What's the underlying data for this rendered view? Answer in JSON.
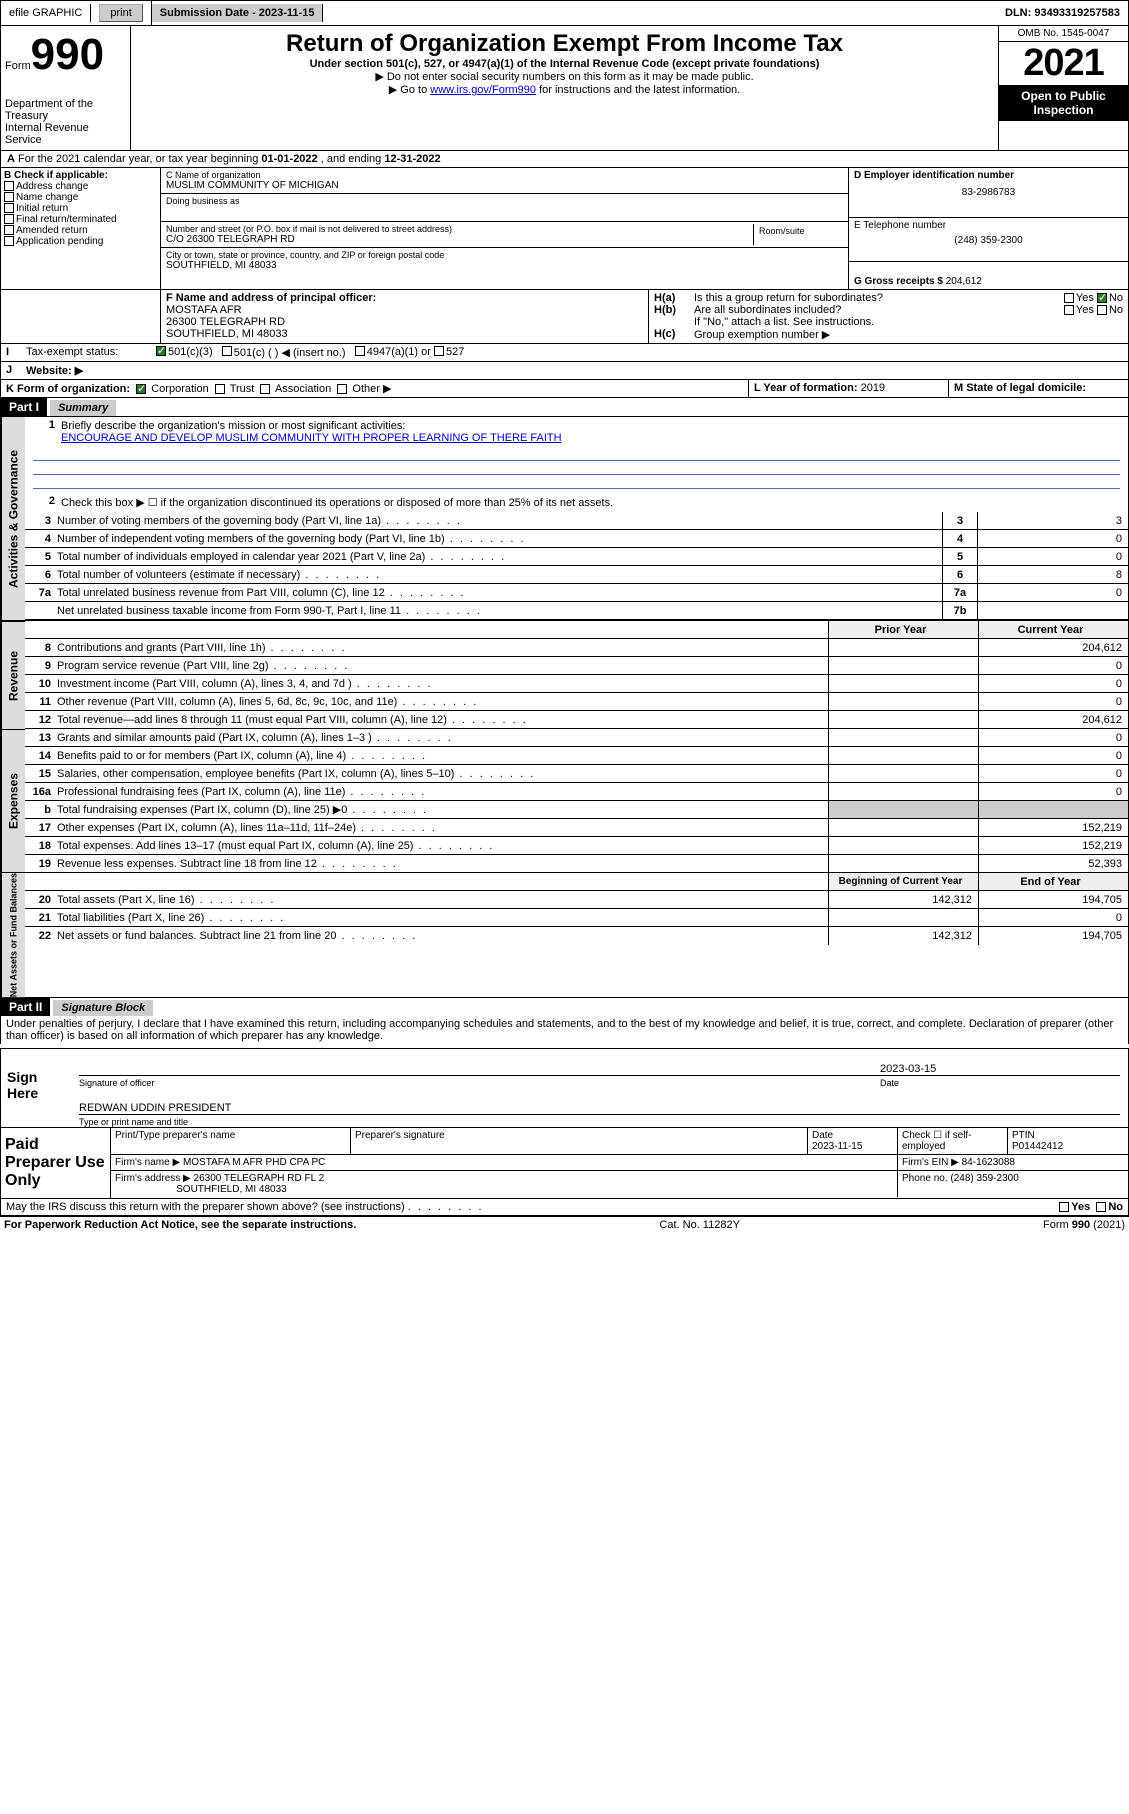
{
  "topbar": {
    "efile": "efile GRAPHIC",
    "print": "print",
    "sub_date_label": "Submission Date - 2023-11-15",
    "dln": "DLN: 93493319257583"
  },
  "header": {
    "form_word": "Form",
    "form_num": "990",
    "title": "Return of Organization Exempt From Income Tax",
    "sub1": "Under section 501(c), 527, or 4947(a)(1) of the Internal Revenue Code (except private foundations)",
    "sub2": "▶ Do not enter social security numbers on this form as it may be made public.",
    "sub3_pre": "▶ Go to ",
    "sub3_link": "www.irs.gov/Form990",
    "sub3_post": " for instructions and the latest information.",
    "dept": "Department of the Treasury",
    "irs": "Internal Revenue Service",
    "omb": "OMB No. 1545-0047",
    "year": "2021",
    "open": "Open to Public Inspection"
  },
  "row_a": {
    "text_pre": "For the 2021 calendar year, or tax year beginning ",
    "begin": "01-01-2022",
    "mid": " , and ending ",
    "end": "12-31-2022"
  },
  "col_b": {
    "label": "B Check if applicable:",
    "items": [
      "Address change",
      "Name change",
      "Initial return",
      "Final return/terminated",
      "Amended return",
      "Application pending"
    ]
  },
  "col_c": {
    "c_label": "C Name of organization",
    "org_name": "MUSLIM COMMUNITY OF MICHIGAN",
    "dba_label": "Doing business as",
    "addr_label": "Number and street (or P.O. box if mail is not delivered to street address)",
    "room_label": "Room/suite",
    "addr": "C/O 26300 TELEGRAPH RD",
    "city_label": "City or town, state or province, country, and ZIP or foreign postal code",
    "city": "SOUTHFIELD, MI  48033"
  },
  "col_d": {
    "label": "D Employer identification number",
    "ein": "83-2986783"
  },
  "col_e": {
    "label": "E Telephone number",
    "phone": "(248) 359-2300"
  },
  "col_g": {
    "label": "G Gross receipts $",
    "amount": "204,612"
  },
  "row_f": {
    "label": "F Name and address of principal officer:",
    "name": "MOSTAFA AFR",
    "addr1": "26300 TELEGRAPH RD",
    "addr2": "SOUTHFIELD, MI  48033"
  },
  "row_h": {
    "ha": "Is this a group return for subordinates?",
    "hb": "Are all subordinates included?",
    "hb_note": "If \"No,\" attach a list. See instructions.",
    "hc": "Group exemption number ▶",
    "yes": "Yes",
    "no": "No"
  },
  "row_i": {
    "label": "Tax-exempt status:",
    "opts": [
      "501(c)(3)",
      "501(c) (  ) ◀ (insert no.)",
      "4947(a)(1) or",
      "527"
    ]
  },
  "row_j": {
    "label": "Website: ▶"
  },
  "row_k": {
    "label": "K Form of organization:",
    "opts": [
      "Corporation",
      "Trust",
      "Association",
      "Other ▶"
    ]
  },
  "row_l": {
    "label": "L Year of formation:",
    "val": "2019"
  },
  "row_m": {
    "label": "M State of legal domicile:"
  },
  "part1": {
    "header": "Part I",
    "title": "Summary",
    "l1_label": "Briefly describe the organization's mission or most significant activities:",
    "l1_mission": "ENCOURAGE AND DEVELOP MUSLIM COMMUNITY WITH PROPER LEARNING OF THERE FAITH",
    "l2": "Check this box ▶ ☐ if the organization discontinued its operations or disposed of more than 25% of its net assets.",
    "lines_gov": [
      {
        "n": "3",
        "d": "Number of voting members of the governing body (Part VI, line 1a)",
        "lab": "3",
        "v": "3"
      },
      {
        "n": "4",
        "d": "Number of independent voting members of the governing body (Part VI, line 1b)",
        "lab": "4",
        "v": "0"
      },
      {
        "n": "5",
        "d": "Total number of individuals employed in calendar year 2021 (Part V, line 2a)",
        "lab": "5",
        "v": "0"
      },
      {
        "n": "6",
        "d": "Total number of volunteers (estimate if necessary)",
        "lab": "6",
        "v": "8"
      },
      {
        "n": "7a",
        "d": "Total unrelated business revenue from Part VIII, column (C), line 12",
        "lab": "7a",
        "v": "0"
      },
      {
        "n": "",
        "d": "Net unrelated business taxable income from Form 990-T, Part I, line 11",
        "lab": "7b",
        "v": ""
      }
    ],
    "prior_head": "Prior Year",
    "curr_head": "Current Year",
    "rev_lines": [
      {
        "n": "8",
        "d": "Contributions and grants (Part VIII, line 1h)",
        "p": "",
        "c": "204,612"
      },
      {
        "n": "9",
        "d": "Program service revenue (Part VIII, line 2g)",
        "p": "",
        "c": "0"
      },
      {
        "n": "10",
        "d": "Investment income (Part VIII, column (A), lines 3, 4, and 7d )",
        "p": "",
        "c": "0"
      },
      {
        "n": "11",
        "d": "Other revenue (Part VIII, column (A), lines 5, 6d, 8c, 9c, 10c, and 11e)",
        "p": "",
        "c": "0"
      },
      {
        "n": "12",
        "d": "Total revenue—add lines 8 through 11 (must equal Part VIII, column (A), line 12)",
        "p": "",
        "c": "204,612"
      }
    ],
    "exp_lines": [
      {
        "n": "13",
        "d": "Grants and similar amounts paid (Part IX, column (A), lines 1–3 )",
        "p": "",
        "c": "0"
      },
      {
        "n": "14",
        "d": "Benefits paid to or for members (Part IX, column (A), line 4)",
        "p": "",
        "c": "0"
      },
      {
        "n": "15",
        "d": "Salaries, other compensation, employee benefits (Part IX, column (A), lines 5–10)",
        "p": "",
        "c": "0"
      },
      {
        "n": "16a",
        "d": "Professional fundraising fees (Part IX, column (A), line 11e)",
        "p": "",
        "c": "0"
      },
      {
        "n": "b",
        "d": "Total fundraising expenses (Part IX, column (D), line 25) ▶0",
        "p": "gray",
        "c": "gray"
      },
      {
        "n": "17",
        "d": "Other expenses (Part IX, column (A), lines 11a–11d, 11f–24e)",
        "p": "",
        "c": "152,219"
      },
      {
        "n": "18",
        "d": "Total expenses. Add lines 13–17 (must equal Part IX, column (A), line 25)",
        "p": "",
        "c": "152,219"
      },
      {
        "n": "19",
        "d": "Revenue less expenses. Subtract line 18 from line 12",
        "p": "",
        "c": "52,393"
      }
    ],
    "na_head1": "Beginning of Current Year",
    "na_head2": "End of Year",
    "na_lines": [
      {
        "n": "20",
        "d": "Total assets (Part X, line 16)",
        "p": "142,312",
        "c": "194,705"
      },
      {
        "n": "21",
        "d": "Total liabilities (Part X, line 26)",
        "p": "",
        "c": "0"
      },
      {
        "n": "22",
        "d": "Net assets or fund balances. Subtract line 21 from line 20",
        "p": "142,312",
        "c": "194,705"
      }
    ],
    "side_gov": "Activities & Governance",
    "side_rev": "Revenue",
    "side_exp": "Expenses",
    "side_na": "Net Assets or Fund Balances"
  },
  "part2": {
    "header": "Part II",
    "title": "Signature Block",
    "declaration": "Under penalties of perjury, I declare that I have examined this return, including accompanying schedules and statements, and to the best of my knowledge and belief, it is true, correct, and complete. Declaration of preparer (other than officer) is based on all information of which preparer has any knowledge."
  },
  "sign": {
    "label": "Sign Here",
    "sig_label": "Signature of officer",
    "date": "2023-03-15",
    "date_label": "Date",
    "name": "REDWAN UDDIN  PRESIDENT",
    "name_label": "Type or print name and title"
  },
  "prep": {
    "label": "Paid Preparer Use Only",
    "h1": "Print/Type preparer's name",
    "h2": "Preparer's signature",
    "h3": "Date",
    "h3v": "2023-11-15",
    "h4": "Check ☐ if self-employed",
    "h5": "PTIN",
    "h5v": "P01442412",
    "firm_label": "Firm's name    ▶",
    "firm": "MOSTAFA M AFR PHD CPA PC",
    "ein_label": "Firm's EIN ▶",
    "ein": "84-1623088",
    "addr_label": "Firm's address ▶",
    "addr1": "26300 TELEGRAPH RD FL 2",
    "addr2": "SOUTHFIELD, MI  48033",
    "phone_label": "Phone no.",
    "phone": "(248) 359-2300"
  },
  "discuss": {
    "text": "May the IRS discuss this return with the preparer shown above? (see instructions)",
    "yes": "Yes",
    "no": "No"
  },
  "footer": {
    "left": "For Paperwork Reduction Act Notice, see the separate instructions.",
    "mid": "Cat. No. 11282Y",
    "right": "Form 990 (2021)"
  }
}
